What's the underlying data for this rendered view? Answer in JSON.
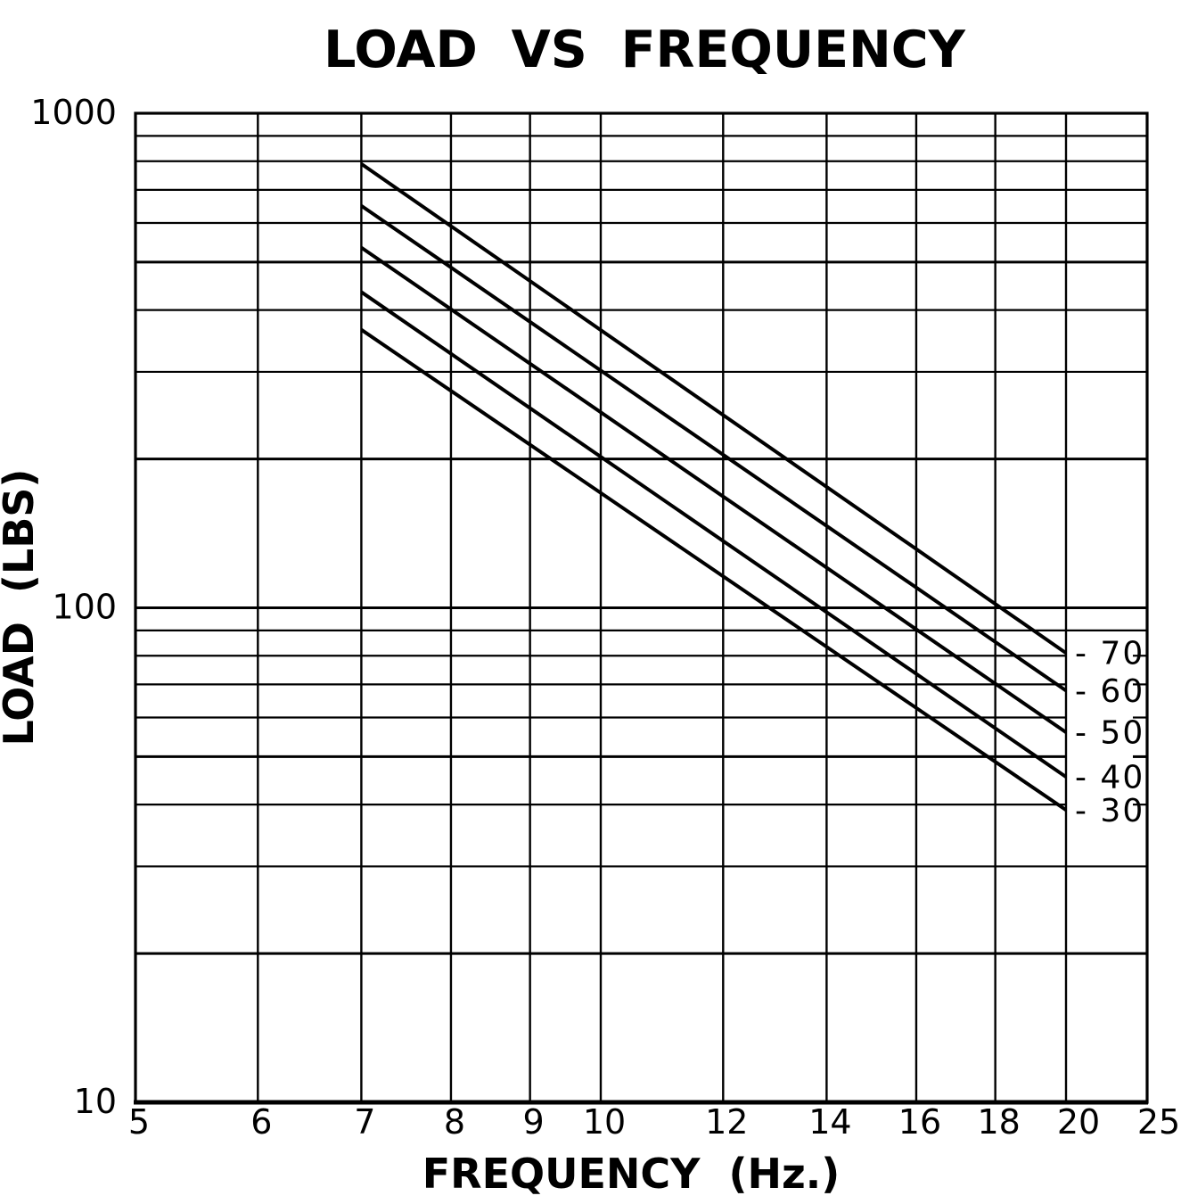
{
  "page": {
    "background_color": "#ffffff",
    "ink_color": "#000000"
  },
  "title": "LOAD VS FREQUENCY",
  "axes": {
    "x": {
      "label": "FREQUENCY (Hz.)",
      "tick_labels": [
        "5",
        "6",
        "7",
        "8",
        "9",
        "10",
        "12",
        "14",
        "16",
        "18",
        "20",
        "25"
      ]
    },
    "y": {
      "label": "LOAD (LBS)",
      "tick_labels": [
        "1000",
        "100",
        "10"
      ]
    }
  },
  "chart_data": {
    "type": "line",
    "title": "LOAD VS FREQUENCY",
    "xlabel": "FREQUENCY (Hz.)",
    "ylabel": "LOAD (LBS)",
    "x_scale": "log",
    "y_scale": "log",
    "xlim": [
      5,
      25
    ],
    "ylim": [
      10,
      1000
    ],
    "grid": true,
    "x_gridlines": [
      5,
      6,
      7,
      8,
      9,
      10,
      12,
      14,
      16,
      18,
      20,
      25
    ],
    "y_gridlines": [
      1000,
      900,
      800,
      700,
      600,
      500,
      400,
      300,
      200,
      100,
      90,
      80,
      70,
      60,
      50,
      40,
      30,
      20,
      10
    ],
    "x_tick_values": [
      5,
      6,
      7,
      8,
      9,
      10,
      12,
      14,
      16,
      18,
      20,
      25
    ],
    "y_tick_values": [
      1000,
      100,
      10
    ],
    "series": [
      {
        "name": "-70",
        "x": [
          7,
          20
        ],
        "y": [
          790,
          81
        ]
      },
      {
        "name": "-60",
        "x": [
          7,
          20
        ],
        "y": [
          650,
          68
        ]
      },
      {
        "name": "-50",
        "x": [
          7,
          20
        ],
        "y": [
          535,
          56
        ]
      },
      {
        "name": "-40",
        "x": [
          7,
          20
        ],
        "y": [
          435,
          45.5
        ]
      },
      {
        "name": "-30",
        "x": [
          7,
          20
        ],
        "y": [
          365,
          39
        ]
      }
    ],
    "series_label_position": "right-end",
    "gridlines_interrupted_by_series_labels": [
      80,
      70,
      60,
      50,
      40
    ],
    "axis_notes": "log-log graph paper; x-axis logarithmic 5-20 with compressed end division to 25; y-axis two full decades 10-1000"
  }
}
